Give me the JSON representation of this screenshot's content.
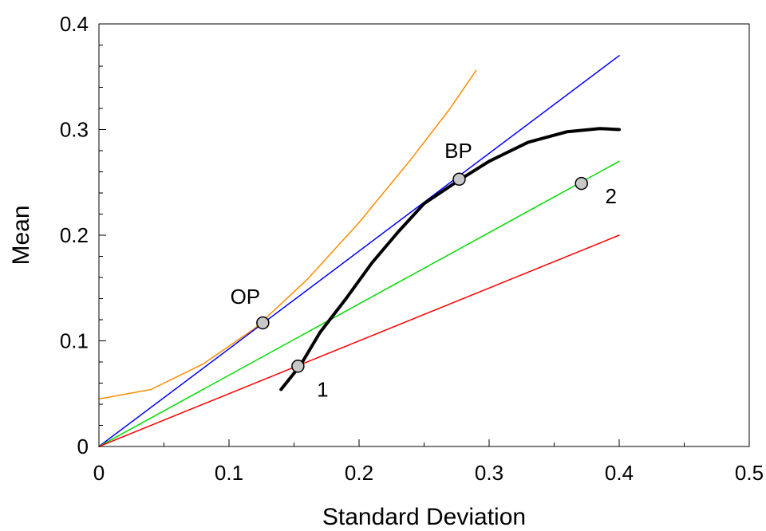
{
  "chart_data": {
    "type": "line",
    "title": "",
    "xlabel": "Standard Deviation",
    "ylabel": "Mean",
    "xlim": [
      0,
      0.5
    ],
    "ylim": [
      0,
      0.4
    ],
    "x_ticks": [
      0,
      0.1,
      0.2,
      0.3,
      0.4,
      0.5
    ],
    "x_tick_labels": [
      "0",
      "0.1",
      "0.2",
      "0.3",
      "0.4",
      "0.5"
    ],
    "y_ticks": [
      0,
      0.1,
      0.2,
      0.3,
      0.4
    ],
    "y_tick_labels": [
      "0",
      "0.1",
      "0.2",
      "0.3",
      "0.4"
    ],
    "grid": false,
    "series": [
      {
        "color": "#ff8c00",
        "stroke": 1.5,
        "points": [
          [
            0,
            0.045
          ],
          [
            0.04,
            0.054
          ],
          [
            0.08,
            0.078
          ],
          [
            0.12,
            0.112
          ],
          [
            0.16,
            0.158
          ],
          [
            0.2,
            0.212
          ],
          [
            0.24,
            0.272
          ],
          [
            0.27,
            0.32
          ],
          [
            0.29,
            0.356
          ]
        ]
      },
      {
        "color": "#0000ff",
        "stroke": 1.5,
        "points": [
          [
            0,
            0
          ],
          [
            0.4,
            0.37
          ]
        ]
      },
      {
        "color": "#00dd00",
        "stroke": 1.5,
        "points": [
          [
            0,
            0
          ],
          [
            0.4,
            0.27
          ]
        ]
      },
      {
        "color": "#ff0000",
        "stroke": 1.5,
        "points": [
          [
            0,
            0
          ],
          [
            0.4,
            0.2
          ]
        ]
      },
      {
        "color": "#000000",
        "stroke": 4,
        "points": [
          [
            0.14,
            0.054
          ],
          [
            0.155,
            0.077
          ],
          [
            0.17,
            0.108
          ],
          [
            0.19,
            0.14
          ],
          [
            0.21,
            0.174
          ],
          [
            0.23,
            0.203
          ],
          [
            0.25,
            0.23
          ],
          [
            0.278,
            0.253
          ],
          [
            0.3,
            0.27
          ],
          [
            0.33,
            0.288
          ],
          [
            0.36,
            0.298
          ],
          [
            0.385,
            0.301
          ],
          [
            0.4,
            0.3
          ]
        ]
      }
    ],
    "points": [
      {
        "label": "OP",
        "x": 0.126,
        "y": 0.117,
        "label_pos": "above-left"
      },
      {
        "label": "BP",
        "x": 0.277,
        "y": 0.253,
        "label_pos": "above"
      },
      {
        "label": "1",
        "x": 0.153,
        "y": 0.076,
        "label_pos": "below-right"
      },
      {
        "label": "2",
        "x": 0.371,
        "y": 0.249,
        "label_pos": "right-below"
      }
    ]
  }
}
